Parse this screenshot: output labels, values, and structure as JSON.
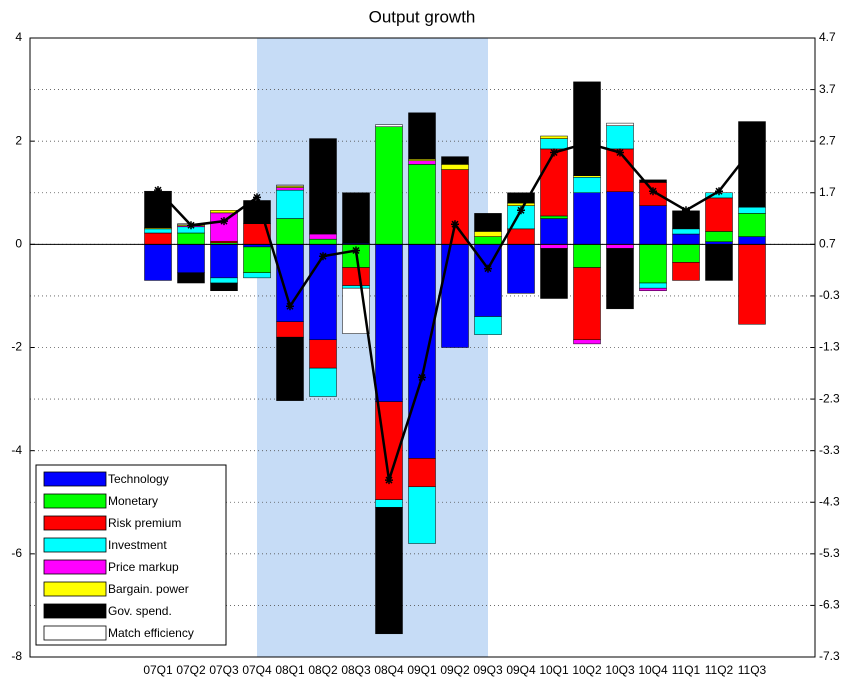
{
  "chart_data": {
    "type": "bar",
    "stacked": true,
    "title": "Output growth",
    "categories": [
      "07Q1",
      "07Q2",
      "07Q3",
      "07Q4",
      "08Q1",
      "08Q2",
      "08Q3",
      "08Q4",
      "09Q1",
      "09Q2",
      "09Q3",
      "09Q4",
      "10Q1",
      "10Q2",
      "10Q3",
      "10Q4",
      "11Q1",
      "11Q2",
      "11Q3"
    ],
    "shaded": {
      "from": "07Q4",
      "to": "09Q3",
      "color": "#c6dcf6"
    },
    "series": [
      {
        "name": "Technology",
        "color": "#0000ff",
        "values": [
          -0.7,
          -0.55,
          -0.65,
          -0.05,
          -1.5,
          -1.85,
          0.02,
          -3.05,
          -4.15,
          -2.0,
          -1.4,
          -0.95,
          0.5,
          1.0,
          1.02,
          0.75,
          0.2,
          0.05,
          0.15
        ]
      },
      {
        "name": "Monetary",
        "color": "#00ff00",
        "values": [
          0,
          0.22,
          0.03,
          -0.5,
          0.5,
          0.1,
          -0.45,
          2.28,
          1.55,
          0,
          0.15,
          0,
          0.05,
          -0.45,
          0,
          -0.75,
          -0.35,
          0.2,
          0.45
        ]
      },
      {
        "name": "Risk premium",
        "color": "#ff0000",
        "values": [
          0.22,
          0,
          0.03,
          0.4,
          -0.3,
          -0.55,
          -0.35,
          -1.9,
          -0.55,
          1.45,
          0,
          0.3,
          1.3,
          -1.4,
          0.83,
          0.45,
          -0.35,
          0.65,
          -1.55
        ]
      },
      {
        "name": "Investment",
        "color": "#00ffff",
        "values": [
          0.08,
          0.12,
          -0.1,
          -0.1,
          0.55,
          -0.55,
          -0.05,
          -0.15,
          -1.1,
          0,
          -0.35,
          0.45,
          0.2,
          0.3,
          0.45,
          -0.1,
          0.1,
          0.1,
          0.12
        ]
      },
      {
        "name": "Price markup",
        "color": "#ff00ff",
        "values": [
          0,
          0.02,
          0.55,
          0,
          0.05,
          0.1,
          0,
          0,
          0.07,
          0,
          0,
          0,
          -0.08,
          -0.08,
          -0.08,
          -0.05,
          0,
          0,
          0
        ]
      },
      {
        "name": "Bargain. power",
        "color": "#ffff00",
        "values": [
          0.02,
          0.02,
          0.05,
          0,
          0.03,
          0,
          0,
          0,
          0.03,
          0.1,
          0.1,
          0.05,
          0.05,
          0.03,
          0,
          0,
          0,
          0,
          0
        ]
      },
      {
        "name": "Gov. spend.",
        "color": "#000000",
        "values": [
          0.7,
          -0.2,
          -0.15,
          0.45,
          -1.23,
          1.85,
          0.98,
          -2.45,
          0.9,
          0.15,
          0.35,
          0.2,
          -0.97,
          1.82,
          -1.17,
          0.05,
          0.35,
          -0.7,
          1.66
        ]
      },
      {
        "name": "Match efficiency",
        "color": "#ffffff",
        "values": [
          0.01,
          0.02,
          0,
          0,
          0.02,
          0,
          -0.88,
          0.04,
          0,
          0,
          0,
          0,
          0,
          0,
          0.05,
          0,
          0,
          0,
          0
        ]
      }
    ],
    "line": {
      "axis": "y2",
      "color": "#000000",
      "values": [
        1.75,
        1.07,
        1.15,
        1.61,
        -0.5,
        0.47,
        0.58,
        -3.87,
        -1.88,
        1.09,
        0.23,
        1.36,
        2.48,
        2.66,
        2.48,
        1.73,
        1.36,
        1.73,
        2.55
      ]
    },
    "ylim": [
      -8,
      4
    ],
    "yticks": [
      -8,
      -6,
      -4,
      -2,
      0,
      2,
      4
    ],
    "y2lim": [
      -7.3,
      4.7
    ],
    "y2ticks": [
      4.7,
      3.7,
      2.7,
      1.7,
      0.7,
      -0.3,
      -1.3,
      -2.3,
      -3.3,
      -4.3,
      -5.3,
      -6.3,
      -7.3
    ],
    "grid": true,
    "legend": "lower left"
  }
}
